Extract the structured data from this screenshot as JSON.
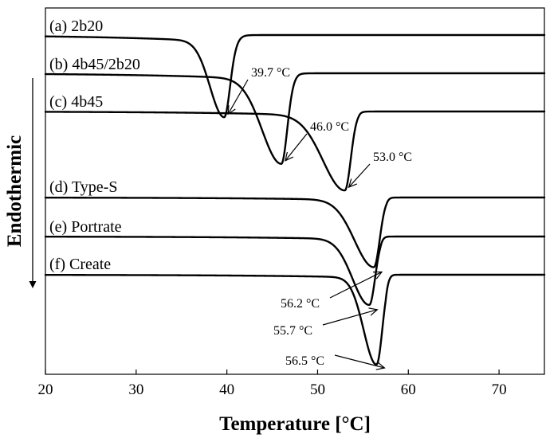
{
  "chart_data": {
    "type": "line",
    "xlabel": "Temperature [°C]",
    "ylabel": "Endothermic",
    "xlim": [
      20,
      75
    ],
    "xticks": [
      "20",
      "30",
      "40",
      "50",
      "60",
      "70"
    ],
    "grid": false,
    "series": [
      {
        "name": "(a) 2b20",
        "peak_temp_label": "39.7 °C",
        "peak_x": 39.7,
        "onset": 41.2,
        "recover": 43.0,
        "depth": 3.15
      },
      {
        "name": "(b) 4b45/2b20",
        "peak_temp_label": "46.0 °C",
        "peak_x": 46.0,
        "onset": 47.3,
        "recover": 49.5,
        "depth": 3.5
      },
      {
        "name": "(c) 4b45",
        "peak_temp_label": "53.0 °C",
        "peak_x": 53.0,
        "onset": 54.0,
        "recover": 57.0,
        "depth": 3.1
      },
      {
        "name": "(d) Type-S",
        "peak_temp_label": "56.2 °C",
        "peak_x": 56.2,
        "onset": 57.1,
        "recover": 58.6,
        "depth": 2.8
      },
      {
        "name": "(e) Portrate",
        "peak_temp_label": "55.7 °C",
        "peak_x": 55.7,
        "onset": 56.4,
        "recover": 58.0,
        "depth": 2.75
      },
      {
        "name": "(f) Create",
        "peak_temp_label": "56.5 °C",
        "peak_x": 56.5,
        "onset": 57.0,
        "recover": 58.5,
        "depth": 3.65
      }
    ]
  }
}
